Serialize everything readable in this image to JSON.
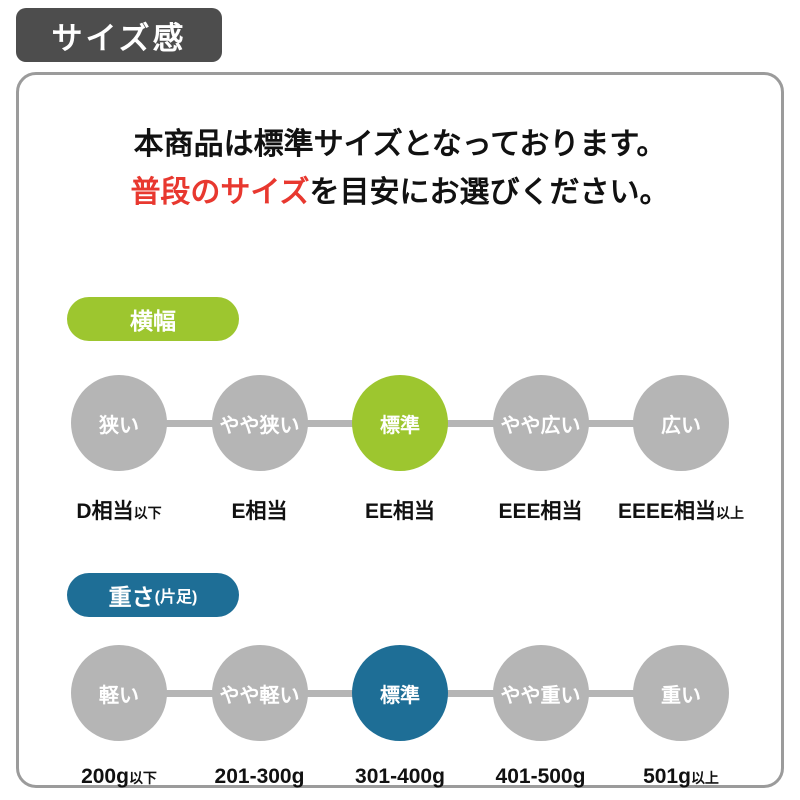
{
  "page_title": "サイズ感",
  "intro": {
    "line1": "本商品は標準サイズとなっております。",
    "line2_highlight": "普段のサイズ",
    "line2_rest": "を目安にお選びください。"
  },
  "colors": {
    "accent_green": "#9dc62f",
    "accent_teal": "#1e6e96",
    "highlight_red": "#e8382f",
    "inactive_gray": "#b5b5b5",
    "title_badge_gray": "#4d4d4d"
  },
  "sections": [
    {
      "badge": "横幅",
      "badge_suffix": "",
      "items": [
        {
          "circle": "狭い",
          "label": "D相当",
          "suffix": "以下",
          "active": false
        },
        {
          "circle": "やや狭い",
          "label": "E相当",
          "suffix": "",
          "active": false
        },
        {
          "circle": "標準",
          "label": "EE相当",
          "suffix": "",
          "active": true
        },
        {
          "circle": "やや広い",
          "label": "EEE相当",
          "suffix": "",
          "active": false
        },
        {
          "circle": "広い",
          "label": "EEEE相当",
          "suffix": "以上",
          "active": false
        }
      ]
    },
    {
      "badge": "重さ",
      "badge_suffix": "(片足)",
      "items": [
        {
          "circle": "軽い",
          "label": "200g",
          "suffix": "以下",
          "active": false
        },
        {
          "circle": "やや軽い",
          "label": "201-300g",
          "suffix": "",
          "active": false
        },
        {
          "circle": "標準",
          "label": "301-400g",
          "suffix": "",
          "active": true
        },
        {
          "circle": "やや重い",
          "label": "401-500g",
          "suffix": "",
          "active": false
        },
        {
          "circle": "重い",
          "label": "501g",
          "suffix": "以上",
          "active": false
        }
      ]
    }
  ]
}
